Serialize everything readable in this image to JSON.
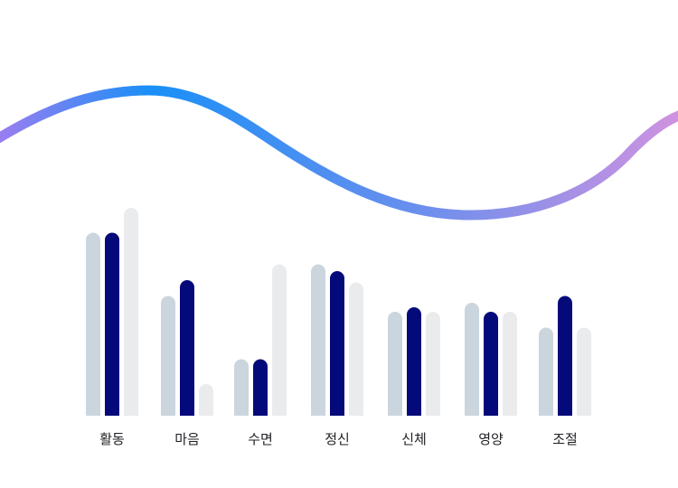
{
  "chart_data": {
    "type": "bar",
    "categories": [
      "활동",
      "마음",
      "수면",
      "정신",
      "신체",
      "영양",
      "조절"
    ],
    "series": [
      {
        "values": [
          81,
          53,
          25,
          67,
          46,
          50,
          39
        ]
      },
      {
        "values": [
          81,
          60,
          25,
          64,
          48,
          46,
          53
        ]
      },
      {
        "values": [
          92,
          14,
          67,
          59,
          46,
          46,
          39
        ]
      }
    ],
    "ylim": [
      0,
      100
    ],
    "grid": false,
    "legend": "none",
    "colors": {
      "series": [
        "#cbd5de",
        "#050a7a",
        "#eaebed"
      ],
      "wave_gradient": [
        "#9a7df0",
        "#1a8ff7",
        "#6b8fed",
        "#cf92e0"
      ]
    }
  }
}
